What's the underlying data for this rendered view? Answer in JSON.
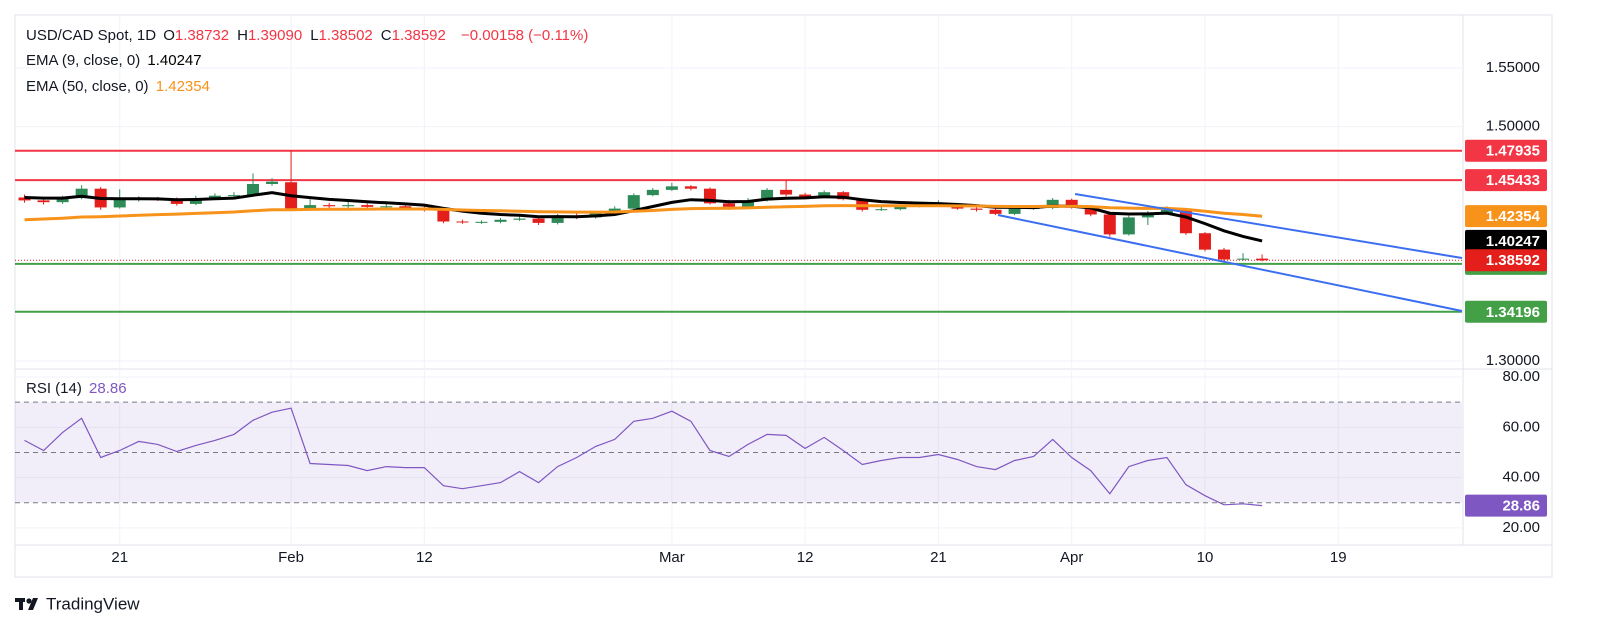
{
  "header": {
    "symbol": "USD/CAD Spot, 1D",
    "ohlc": [
      {
        "key": "O",
        "value": "1.38732"
      },
      {
        "key": "H",
        "value": "1.39090"
      },
      {
        "key": "L",
        "value": "1.38502"
      },
      {
        "key": "C",
        "value": "1.38592"
      }
    ],
    "change": "−0.00158 (−0.11%)"
  },
  "chart_data": [
    {
      "type": "candlestick",
      "categories": [
        null,
        null,
        null,
        null,
        null,
        "21",
        null,
        null,
        null,
        null,
        null,
        null,
        null,
        null,
        "Feb",
        null,
        null,
        null,
        null,
        null,
        null,
        "12",
        null,
        null,
        null,
        null,
        null,
        null,
        null,
        null,
        null,
        null,
        null,
        null,
        "Mar",
        null,
        null,
        null,
        null,
        null,
        null,
        "12",
        null,
        null,
        null,
        null,
        null,
        null,
        "21",
        null,
        null,
        null,
        null,
        null,
        null,
        "Apr",
        null,
        null,
        null,
        null,
        null,
        null,
        "10",
        null,
        null,
        null,
        null,
        null,
        null,
        "19",
        null,
        null,
        null,
        null,
        null,
        null
      ],
      "series": [
        {
          "type": "candlestick",
          "up_color": "#2e8b57",
          "down_color": "#e31e1b",
          "open": [
            1.4395,
            1.437,
            1.4355,
            1.439,
            1.447,
            1.431,
            1.4378,
            1.4385,
            1.438,
            1.434,
            1.439,
            1.441,
            1.4415,
            1.451,
            1.4525,
            1.43,
            1.433,
            1.432,
            1.433,
            1.4315,
            1.432,
            1.43,
            1.429,
            1.419,
            1.4185,
            1.4187,
            1.4205,
            1.4215,
            1.4178,
            1.424,
            1.4225,
            1.4265,
            1.43,
            1.4415,
            1.446,
            1.449,
            1.447,
            1.4345,
            1.4315,
            1.437,
            1.446,
            1.442,
            1.44,
            1.444,
            1.438,
            1.429,
            1.4295,
            1.432,
            1.4325,
            1.433,
            1.43,
            1.429,
            1.4255,
            1.43,
            1.4305,
            1.4375,
            1.431,
            1.425,
            1.408,
            1.4225,
            1.426,
            1.429,
            1.409,
            1.395,
            1.3866,
            1.38732,
            null,
            null,
            null,
            null,
            null,
            null,
            null,
            null,
            null,
            null
          ],
          "high": [
            1.442,
            1.4395,
            1.441,
            1.45,
            1.4485,
            1.4465,
            1.4405,
            1.44,
            1.4395,
            1.441,
            1.443,
            1.444,
            1.46,
            1.456,
            1.47935,
            1.438,
            1.435,
            1.436,
            1.4345,
            1.434,
            1.4335,
            1.432,
            1.43,
            1.4205,
            1.42,
            1.422,
            1.4235,
            1.4225,
            1.4255,
            1.426,
            1.428,
            1.432,
            1.443,
            1.4475,
            1.452,
            1.45,
            1.448,
            1.4375,
            1.439,
            1.4475,
            1.4545,
            1.4435,
            1.4455,
            1.445,
            1.439,
            1.4315,
            1.4335,
            1.434,
            1.437,
            1.4345,
            1.4315,
            1.43,
            1.4315,
            1.432,
            1.439,
            1.4385,
            1.433,
            1.4265,
            1.424,
            1.428,
            1.432,
            1.43,
            1.41,
            1.3965,
            1.392,
            1.3909,
            null,
            null,
            null,
            null,
            null,
            null,
            null,
            null,
            null,
            null
          ],
          "low": [
            1.435,
            1.4335,
            1.434,
            1.438,
            1.429,
            1.43,
            1.436,
            1.4365,
            1.4325,
            1.433,
            1.4375,
            1.4395,
            1.4405,
            1.4495,
            1.428,
            1.4285,
            1.43,
            1.4305,
            1.4295,
            1.43,
            1.4285,
            1.4275,
            1.4175,
            1.417,
            1.417,
            1.4175,
            1.4195,
            1.416,
            1.4165,
            1.421,
            1.4215,
            1.4255,
            1.429,
            1.4405,
            1.445,
            1.4455,
            1.4335,
            1.429,
            1.4305,
            1.436,
            1.4405,
            1.4385,
            1.439,
            1.437,
            1.4275,
            1.428,
            1.4285,
            1.431,
            1.4315,
            1.429,
            1.4275,
            1.4245,
            1.4245,
            1.429,
            1.4295,
            1.43,
            1.4235,
            1.406,
            1.407,
            1.416,
            1.425,
            1.4075,
            1.3935,
            1.385,
            1.3855,
            1.38502,
            null,
            null,
            null,
            null,
            null,
            null,
            null,
            null,
            null,
            null
          ],
          "close": [
            1.437,
            1.4355,
            1.439,
            1.447,
            1.431,
            1.4378,
            1.4385,
            1.438,
            1.434,
            1.439,
            1.441,
            1.4415,
            1.451,
            1.453,
            1.43,
            1.433,
            1.432,
            1.433,
            1.4315,
            1.432,
            1.43,
            1.429,
            1.419,
            1.4185,
            1.4187,
            1.4205,
            1.4215,
            1.4178,
            1.424,
            1.4225,
            1.4265,
            1.43,
            1.4415,
            1.446,
            1.449,
            1.447,
            1.4345,
            1.4315,
            1.437,
            1.446,
            1.442,
            1.44,
            1.444,
            1.438,
            1.429,
            1.4295,
            1.432,
            1.4325,
            1.433,
            1.43,
            1.429,
            1.4255,
            1.43,
            1.4305,
            1.4375,
            1.431,
            1.425,
            1.408,
            1.4225,
            1.426,
            1.429,
            1.409,
            1.395,
            1.3866,
            1.3873,
            1.38592,
            null,
            null,
            null,
            null,
            null,
            null,
            null,
            null,
            null,
            null
          ]
        },
        {
          "type": "line",
          "name": "EMA (9, close, 0)",
          "color": "#000000",
          "values": [
            1.4395,
            1.439,
            1.439,
            1.4405,
            1.4386,
            1.4384,
            1.4384,
            1.4383,
            1.4375,
            1.4378,
            1.4384,
            1.439,
            1.4414,
            1.4437,
            1.441,
            1.4394,
            1.4379,
            1.4369,
            1.4358,
            1.435,
            1.434,
            1.433,
            1.4302,
            1.4279,
            1.4261,
            1.425,
            1.4243,
            1.423,
            1.4232,
            1.4231,
            1.4238,
            1.425,
            1.4283,
            1.4318,
            1.4353,
            1.4376,
            1.437,
            1.4359,
            1.4361,
            1.4381,
            1.4389,
            1.4391,
            1.4401,
            1.4397,
            1.4376,
            1.436,
            1.4352,
            1.4347,
            1.4343,
            1.4335,
            1.4326,
            1.4312,
            1.431,
            1.4309,
            1.4322,
            1.432,
            1.4306,
            1.4261,
            1.4254,
            1.4255,
            1.4262,
            1.4228,
            1.4172,
            1.4111,
            1.4063,
            1.40247,
            null,
            null,
            null,
            null,
            null,
            null,
            null,
            null,
            null,
            null
          ]
        },
        {
          "type": "line",
          "name": "EMA (50, close, 0)",
          "color": "#f7931a",
          "values": [
            1.4205,
            1.4211,
            1.4218,
            1.4228,
            1.4231,
            1.4237,
            1.4243,
            1.4249,
            1.4253,
            1.4259,
            1.4265,
            1.4271,
            1.4281,
            1.4291,
            1.4291,
            1.4293,
            1.4294,
            1.4295,
            1.4296,
            1.4297,
            1.4297,
            1.4297,
            1.4293,
            1.4288,
            1.4284,
            1.4281,
            1.4278,
            1.4274,
            1.4272,
            1.427,
            1.427,
            1.4271,
            1.4277,
            1.4284,
            1.4293,
            1.43,
            1.4302,
            1.4303,
            1.4306,
            1.4312,
            1.4316,
            1.4319,
            1.4324,
            1.4326,
            1.4325,
            1.4324,
            1.4324,
            1.4324,
            1.4324,
            1.4323,
            1.4322,
            1.4319,
            1.4318,
            1.4318,
            1.432,
            1.432,
            1.4317,
            1.4307,
            1.4304,
            1.4302,
            1.4302,
            1.4293,
            1.4278,
            1.426,
            1.425,
            1.42354,
            null,
            null,
            null,
            null,
            null,
            null,
            null,
            null,
            null,
            null
          ]
        }
      ],
      "levels": [
        {
          "value": 1.47935,
          "color": "#f23645"
        },
        {
          "value": 1.45433,
          "color": "#f23645"
        },
        {
          "value": 1.38288,
          "color": "#43a047"
        },
        {
          "value": 1.34196,
          "color": "#43a047"
        }
      ],
      "ylim": [
        1.294,
        1.5952
      ],
      "yticks": [
        {
          "value": 1.3,
          "label": "1.30000"
        },
        {
          "value": 1.5,
          "label": "1.50000"
        },
        {
          "value": 1.55,
          "label": "1.55000"
        }
      ],
      "grid": true
    },
    {
      "type": "line",
      "series": [
        {
          "name": "RSI (14)",
          "color": "#7e57c2",
          "values": [
            54.8,
            50.8,
            58,
            63.6,
            48,
            50.8,
            54.4,
            53.2,
            50.4,
            52.8,
            54.8,
            57.2,
            62.8,
            66,
            67.6,
            45.6,
            45.2,
            44.8,
            42.8,
            44.4,
            44,
            44,
            36.8,
            35.6,
            36.8,
            38,
            42.4,
            38,
            44.4,
            48,
            52.4,
            55.2,
            62.4,
            63.6,
            66.4,
            62.4,
            50.8,
            48.4,
            53.2,
            57.2,
            56.8,
            51.6,
            56,
            50.8,
            45.2,
            46.8,
            48,
            48,
            49.2,
            47.2,
            44.4,
            43.2,
            46.8,
            48.4,
            55.2,
            48,
            42.8,
            33.6,
            44.4,
            46.8,
            48,
            37.2,
            32.8,
            29.2,
            29.6,
            28.86,
            null,
            null,
            null,
            null,
            null,
            null,
            null,
            null,
            null,
            null
          ]
        }
      ],
      "band": [
        30,
        70
      ],
      "levels": [
        70,
        50,
        30
      ],
      "ylim": [
        13.2,
        82.8
      ],
      "yticks": [
        {
          "value": 80,
          "label": "80.00"
        },
        {
          "value": 60,
          "label": "60.00"
        },
        {
          "value": 40,
          "label": "40.00"
        },
        {
          "value": 20,
          "label": "20.00"
        }
      ],
      "grid": true
    }
  ],
  "footer": "TradingView"
}
